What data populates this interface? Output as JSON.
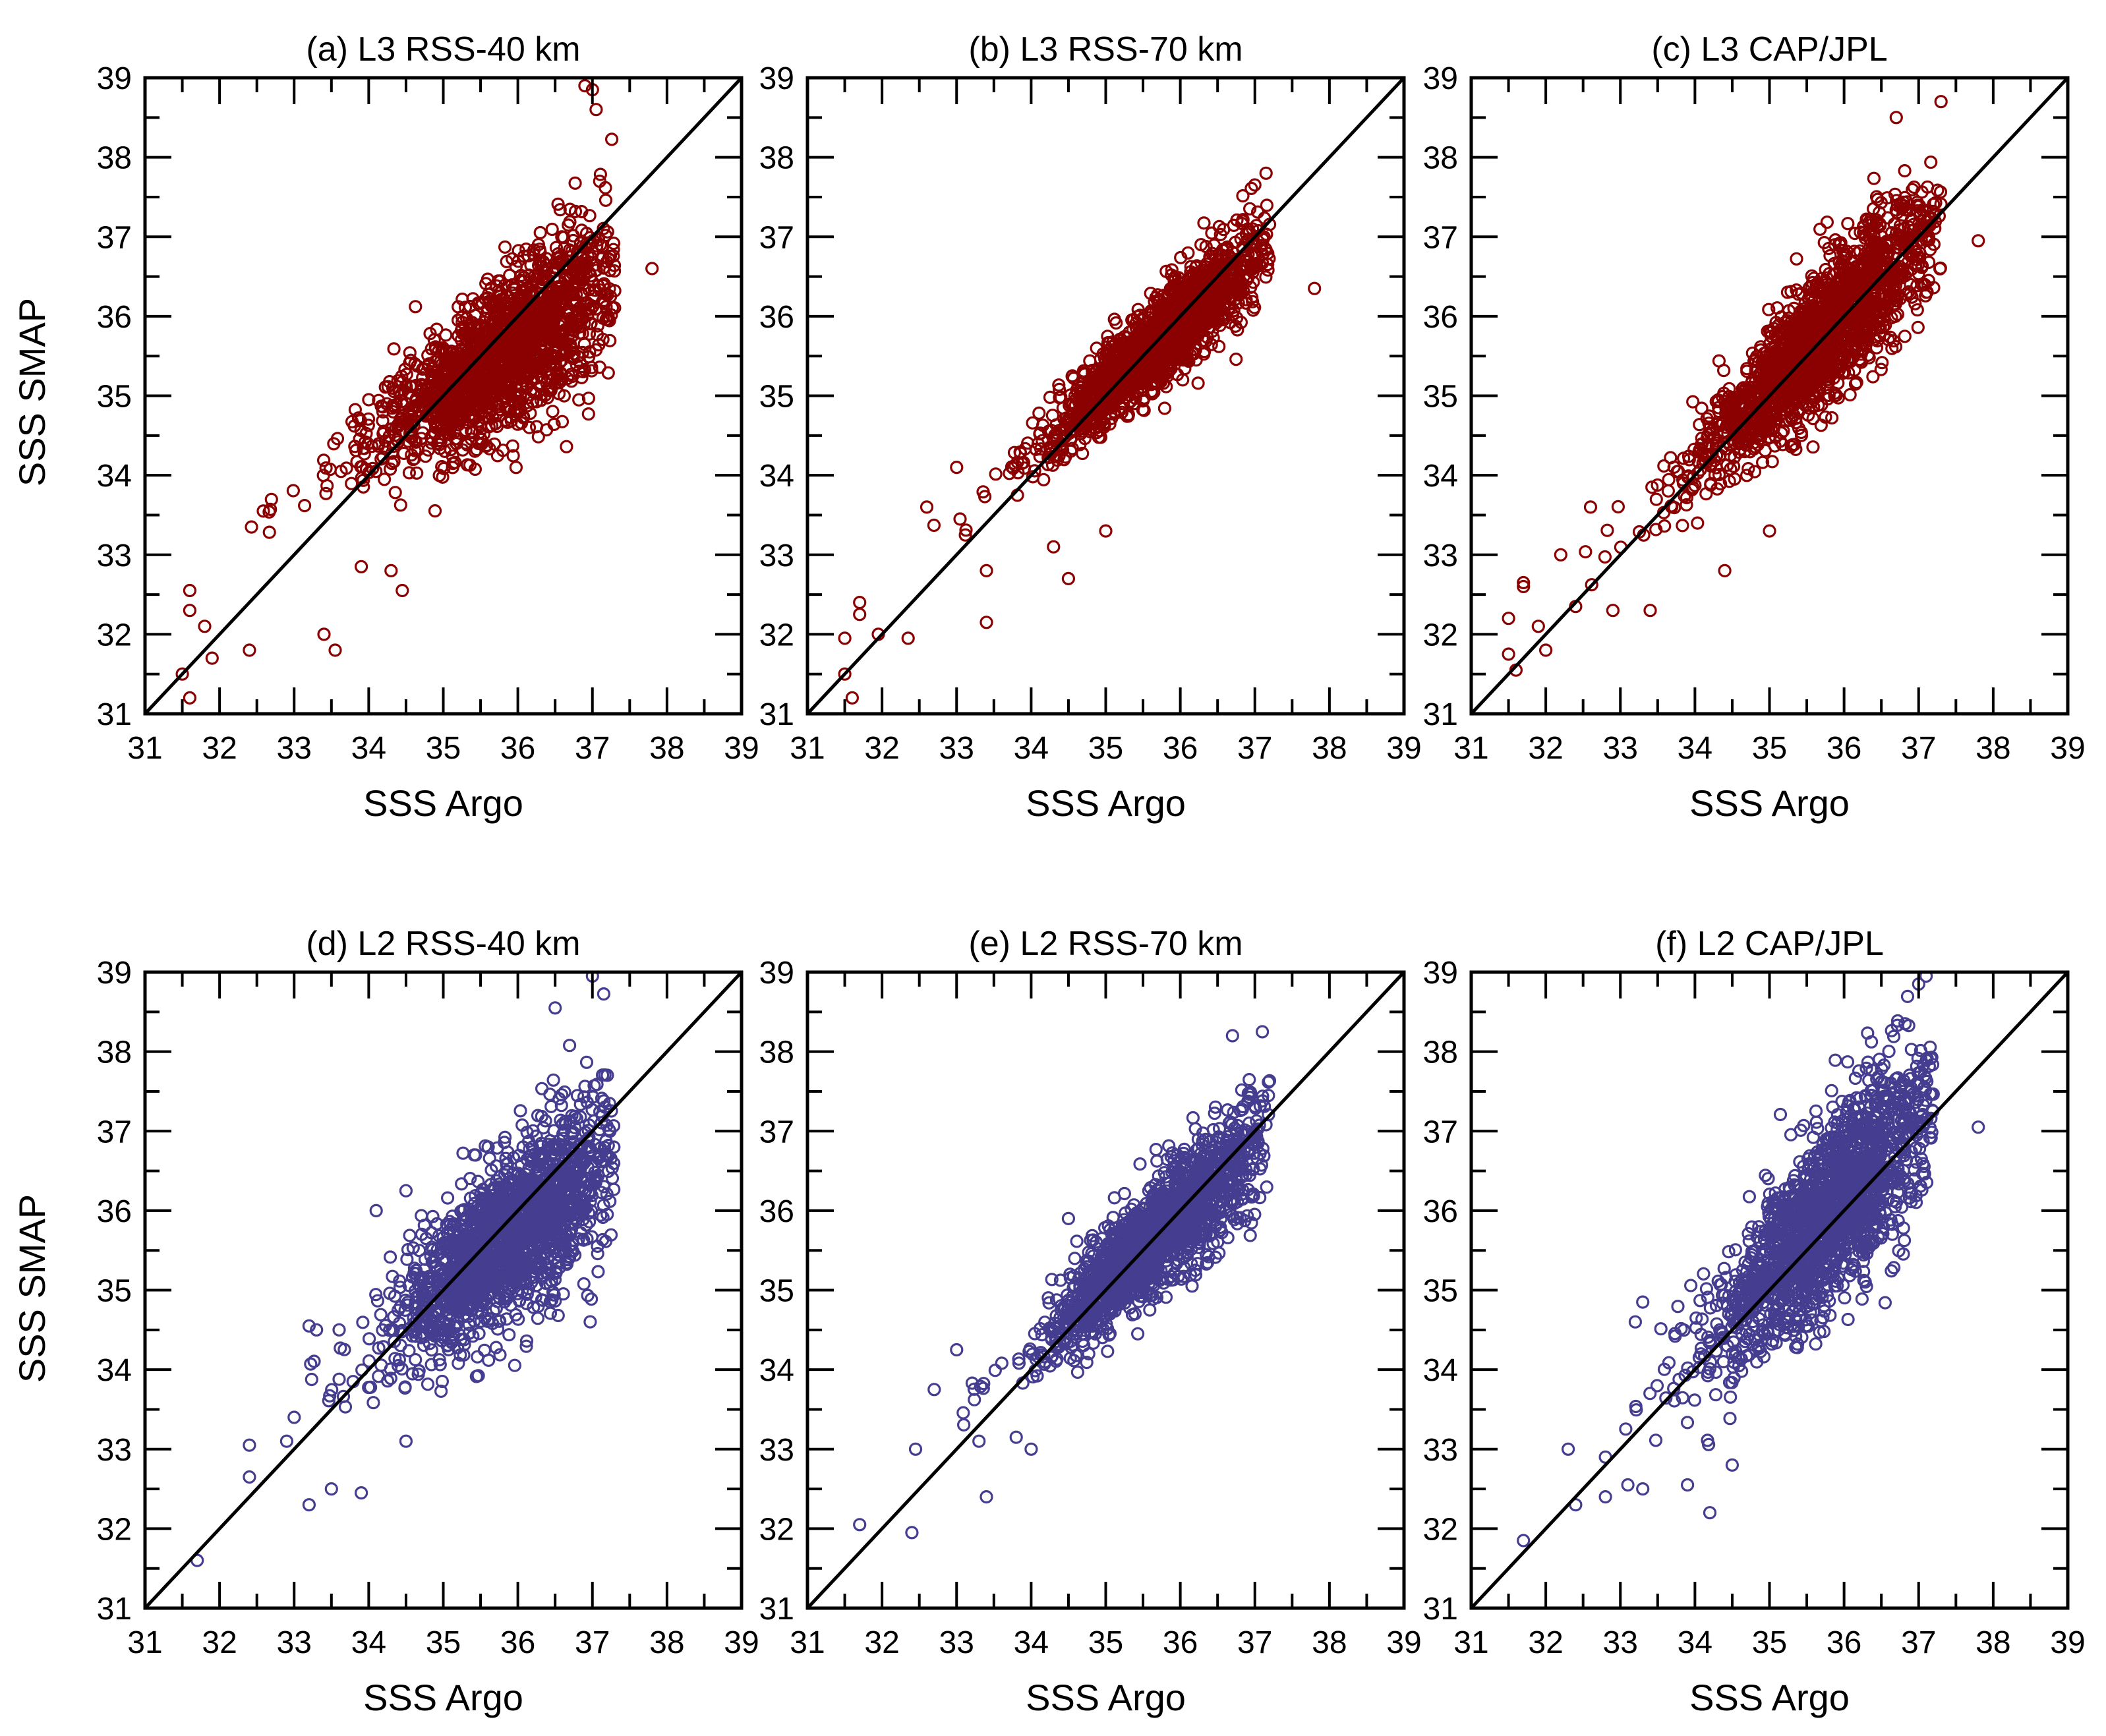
{
  "figure": {
    "y_axis_label": "SSS SMAP",
    "x_axis_label": "SSS Argo"
  },
  "colors": {
    "l3": "#8b0000",
    "l2": "#453d8f",
    "one_to_one_line": "#000000",
    "frame": "#000000"
  },
  "chart_data": [
    {
      "type": "scatter",
      "title": "(a) L3 RSS-40 km",
      "xlabel": "SSS Argo",
      "ylabel": "SSS SMAP",
      "xlim": [
        31,
        39
      ],
      "ylim": [
        31,
        39
      ],
      "xticks": [
        "31",
        "32",
        "33",
        "34",
        "35",
        "36",
        "37",
        "38",
        "39"
      ],
      "yticks": [
        "31",
        "32",
        "33",
        "34",
        "35",
        "36",
        "37",
        "38",
        "39"
      ],
      "color_key": "l3",
      "one_to_one_line": true,
      "core": {
        "slope": 0.62,
        "intercept": 13.35,
        "x_center": 35.8,
        "x_sd": 0.8,
        "x_min": 32.4,
        "x_max": 37.3,
        "noise": 0.55
      },
      "outliers": [
        [
          31.5,
          31.5
        ],
        [
          31.6,
          31.2
        ],
        [
          31.6,
          32.55
        ],
        [
          31.6,
          32.3
        ],
        [
          31.8,
          32.1
        ],
        [
          31.9,
          31.7
        ],
        [
          32.4,
          31.8
        ],
        [
          33.4,
          32.0
        ],
        [
          33.55,
          31.8
        ],
        [
          34.3,
          32.8
        ],
        [
          34.45,
          32.55
        ],
        [
          33.9,
          32.85
        ],
        [
          36.9,
          38.9
        ],
        [
          37.0,
          38.85
        ],
        [
          37.05,
          38.6
        ],
        [
          37.8,
          36.6
        ],
        [
          34.0,
          34.95
        ],
        [
          35.2,
          35.95
        ]
      ]
    },
    {
      "type": "scatter",
      "title": "(b) L3 RSS-70 km",
      "xlabel": "SSS Argo",
      "ylabel": "SSS SMAP",
      "xlim": [
        31,
        39
      ],
      "ylim": [
        31,
        39
      ],
      "xticks": [
        "31",
        "32",
        "33",
        "34",
        "35",
        "36",
        "37",
        "38",
        "39"
      ],
      "yticks": [
        "31",
        "32",
        "33",
        "34",
        "35",
        "36",
        "37",
        "38",
        "39"
      ],
      "color_key": "l3",
      "one_to_one_line": true,
      "core": {
        "slope": 0.84,
        "intercept": 5.7,
        "x_center": 35.7,
        "x_sd": 0.75,
        "x_min": 32.6,
        "x_max": 37.2,
        "noise": 0.32
      },
      "outliers": [
        [
          31.5,
          31.5
        ],
        [
          31.6,
          31.2
        ],
        [
          31.5,
          31.95
        ],
        [
          31.7,
          32.4
        ],
        [
          31.7,
          32.25
        ],
        [
          31.95,
          32.0
        ],
        [
          32.35,
          31.95
        ],
        [
          33.4,
          32.15
        ],
        [
          33.4,
          32.8
        ],
        [
          34.5,
          32.7
        ],
        [
          34.3,
          33.1
        ],
        [
          35.0,
          33.3
        ],
        [
          37.8,
          36.35
        ],
        [
          37.15,
          37.8
        ],
        [
          32.6,
          33.6
        ],
        [
          33.0,
          34.1
        ]
      ]
    },
    {
      "type": "scatter",
      "title": "(c) L3 CAP/JPL",
      "xlabel": "SSS Argo",
      "ylabel": "SSS SMAP",
      "xlim": [
        31,
        39
      ],
      "ylim": [
        31,
        39
      ],
      "xticks": [
        "31",
        "32",
        "33",
        "34",
        "35",
        "36",
        "37",
        "38",
        "39"
      ],
      "yticks": [
        "31",
        "32",
        "33",
        "34",
        "35",
        "36",
        "37",
        "38",
        "39"
      ],
      "color_key": "l3",
      "one_to_one_line": true,
      "core": {
        "slope": 0.92,
        "intercept": 2.9,
        "x_center": 35.7,
        "x_sd": 0.8,
        "x_min": 32.5,
        "x_max": 37.3,
        "noise": 0.5
      },
      "outliers": [
        [
          31.5,
          31.75
        ],
        [
          31.6,
          31.55
        ],
        [
          31.5,
          32.2
        ],
        [
          31.7,
          32.65
        ],
        [
          31.7,
          32.6
        ],
        [
          31.9,
          32.1
        ],
        [
          32.0,
          31.8
        ],
        [
          32.4,
          32.35
        ],
        [
          32.9,
          32.3
        ],
        [
          33.4,
          32.3
        ],
        [
          34.4,
          32.8
        ],
        [
          35.0,
          33.3
        ],
        [
          37.8,
          36.95
        ],
        [
          37.3,
          38.7
        ],
        [
          36.7,
          38.5
        ],
        [
          32.2,
          33.0
        ],
        [
          32.6,
          33.6
        ]
      ]
    },
    {
      "type": "scatter",
      "title": "(d) L2 RSS-40 km",
      "xlabel": "SSS Argo",
      "ylabel": "SSS SMAP",
      "xlim": [
        31,
        39
      ],
      "ylim": [
        31,
        39
      ],
      "xticks": [
        "31",
        "32",
        "33",
        "34",
        "35",
        "36",
        "37",
        "38",
        "39"
      ],
      "yticks": [
        "31",
        "32",
        "33",
        "34",
        "35",
        "36",
        "37",
        "38",
        "39"
      ],
      "color_key": "l2",
      "one_to_one_line": true,
      "core": {
        "slope": 0.72,
        "intercept": 9.85,
        "x_center": 35.9,
        "x_sd": 0.7,
        "x_min": 33.2,
        "x_max": 37.3,
        "noise": 0.6
      },
      "outliers": [
        [
          31.7,
          31.6
        ],
        [
          32.4,
          32.65
        ],
        [
          32.4,
          33.05
        ],
        [
          33.2,
          32.3
        ],
        [
          33.5,
          32.5
        ],
        [
          33.9,
          32.45
        ],
        [
          32.9,
          33.1
        ],
        [
          33.2,
          34.55
        ],
        [
          33.3,
          34.5
        ],
        [
          37.0,
          38.95
        ],
        [
          36.5,
          38.55
        ],
        [
          33.0,
          33.4
        ],
        [
          34.5,
          33.1
        ],
        [
          34.1,
          36.0
        ],
        [
          34.5,
          36.25
        ]
      ]
    },
    {
      "type": "scatter",
      "title": "(e) L2 RSS-70 km",
      "xlabel": "SSS Argo",
      "ylabel": "SSS SMAP",
      "xlim": [
        31,
        39
      ],
      "ylim": [
        31,
        39
      ],
      "xticks": [
        "31",
        "32",
        "33",
        "34",
        "35",
        "36",
        "37",
        "38",
        "39"
      ],
      "yticks": [
        "31",
        "32",
        "33",
        "34",
        "35",
        "36",
        "37",
        "38",
        "39"
      ],
      "color_key": "l2",
      "one_to_one_line": true,
      "core": {
        "slope": 0.88,
        "intercept": 4.3,
        "x_center": 35.7,
        "x_sd": 0.7,
        "x_min": 33.0,
        "x_max": 37.2,
        "noise": 0.4
      },
      "outliers": [
        [
          31.7,
          32.05
        ],
        [
          32.4,
          31.95
        ],
        [
          32.45,
          33.0
        ],
        [
          33.4,
          32.4
        ],
        [
          34.0,
          33.0
        ],
        [
          33.8,
          33.15
        ],
        [
          32.7,
          33.75
        ],
        [
          33.0,
          34.25
        ],
        [
          36.7,
          38.2
        ],
        [
          37.1,
          38.25
        ],
        [
          34.5,
          35.9
        ],
        [
          33.3,
          33.1
        ]
      ]
    },
    {
      "type": "scatter",
      "title": "(f) L2 CAP/JPL",
      "xlabel": "SSS Argo",
      "ylabel": "SSS SMAP",
      "xlim": [
        31,
        39
      ],
      "ylim": [
        31,
        39
      ],
      "xticks": [
        "31",
        "32",
        "33",
        "34",
        "35",
        "36",
        "37",
        "38",
        "39"
      ],
      "yticks": [
        "31",
        "32",
        "33",
        "34",
        "35",
        "36",
        "37",
        "38",
        "39"
      ],
      "color_key": "l2",
      "one_to_one_line": true,
      "core": {
        "slope": 1.0,
        "intercept": 0.2,
        "x_center": 35.8,
        "x_sd": 0.75,
        "x_min": 33.0,
        "x_max": 37.2,
        "noise": 0.65
      },
      "outliers": [
        [
          31.7,
          31.85
        ],
        [
          32.3,
          33.0
        ],
        [
          32.4,
          32.3
        ],
        [
          32.8,
          32.4
        ],
        [
          33.1,
          32.55
        ],
        [
          33.3,
          32.5
        ],
        [
          32.8,
          32.9
        ],
        [
          33.9,
          32.55
        ],
        [
          34.2,
          32.2
        ],
        [
          34.5,
          32.8
        ],
        [
          33.3,
          34.85
        ],
        [
          33.2,
          34.6
        ],
        [
          37.8,
          37.05
        ],
        [
          37.1,
          38.95
        ],
        [
          37.0,
          38.85
        ]
      ]
    }
  ]
}
